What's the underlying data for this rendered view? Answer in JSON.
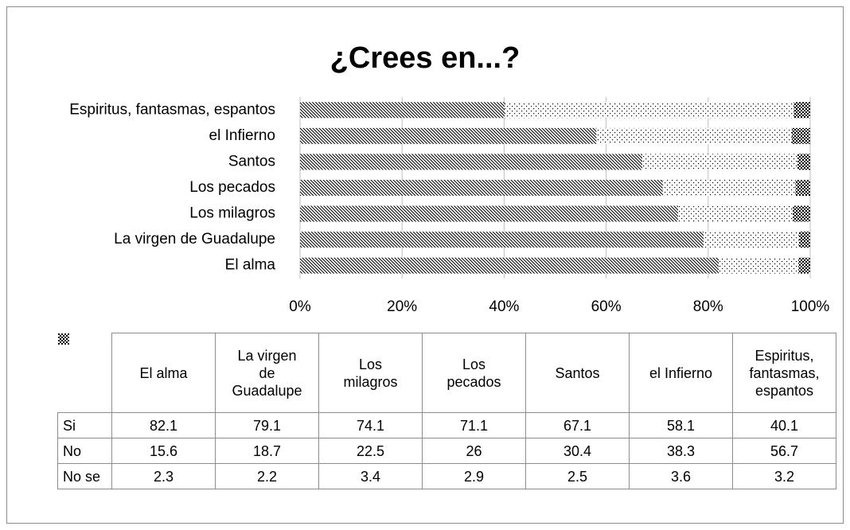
{
  "chart_data": {
    "type": "bar",
    "orientation": "horizontal",
    "stacked": true,
    "title": "¿Crees en...?",
    "categories": [
      "El alma",
      "La virgen de Guadalupe",
      "Los milagros",
      "Los pecados",
      "Santos",
      "el Infierno",
      "Espiritus, fantasmas, espantos"
    ],
    "series": [
      {
        "name": "Si",
        "color": "#000000",
        "pattern": "diag",
        "values": [
          82.1,
          79.1,
          74.1,
          71.1,
          67.1,
          58.1,
          40.1
        ]
      },
      {
        "name": "No",
        "color": "#000000",
        "pattern": "dots",
        "values": [
          15.6,
          18.7,
          22.5,
          26,
          30.4,
          38.3,
          56.7
        ]
      },
      {
        "name": "No se",
        "color": "#000000",
        "pattern": "check",
        "values": [
          2.3,
          2.2,
          3.4,
          2.9,
          2.5,
          3.6,
          3.2
        ]
      }
    ],
    "xlim": [
      0,
      100
    ],
    "xticks": [
      {
        "value": 0,
        "label": "0%"
      },
      {
        "value": 20,
        "label": "20%"
      },
      {
        "value": 40,
        "label": "40%"
      },
      {
        "value": 60,
        "label": "60%"
      },
      {
        "value": 80,
        "label": "80%"
      },
      {
        "value": 100,
        "label": "100%"
      }
    ],
    "grid": true,
    "data_table": true
  }
}
